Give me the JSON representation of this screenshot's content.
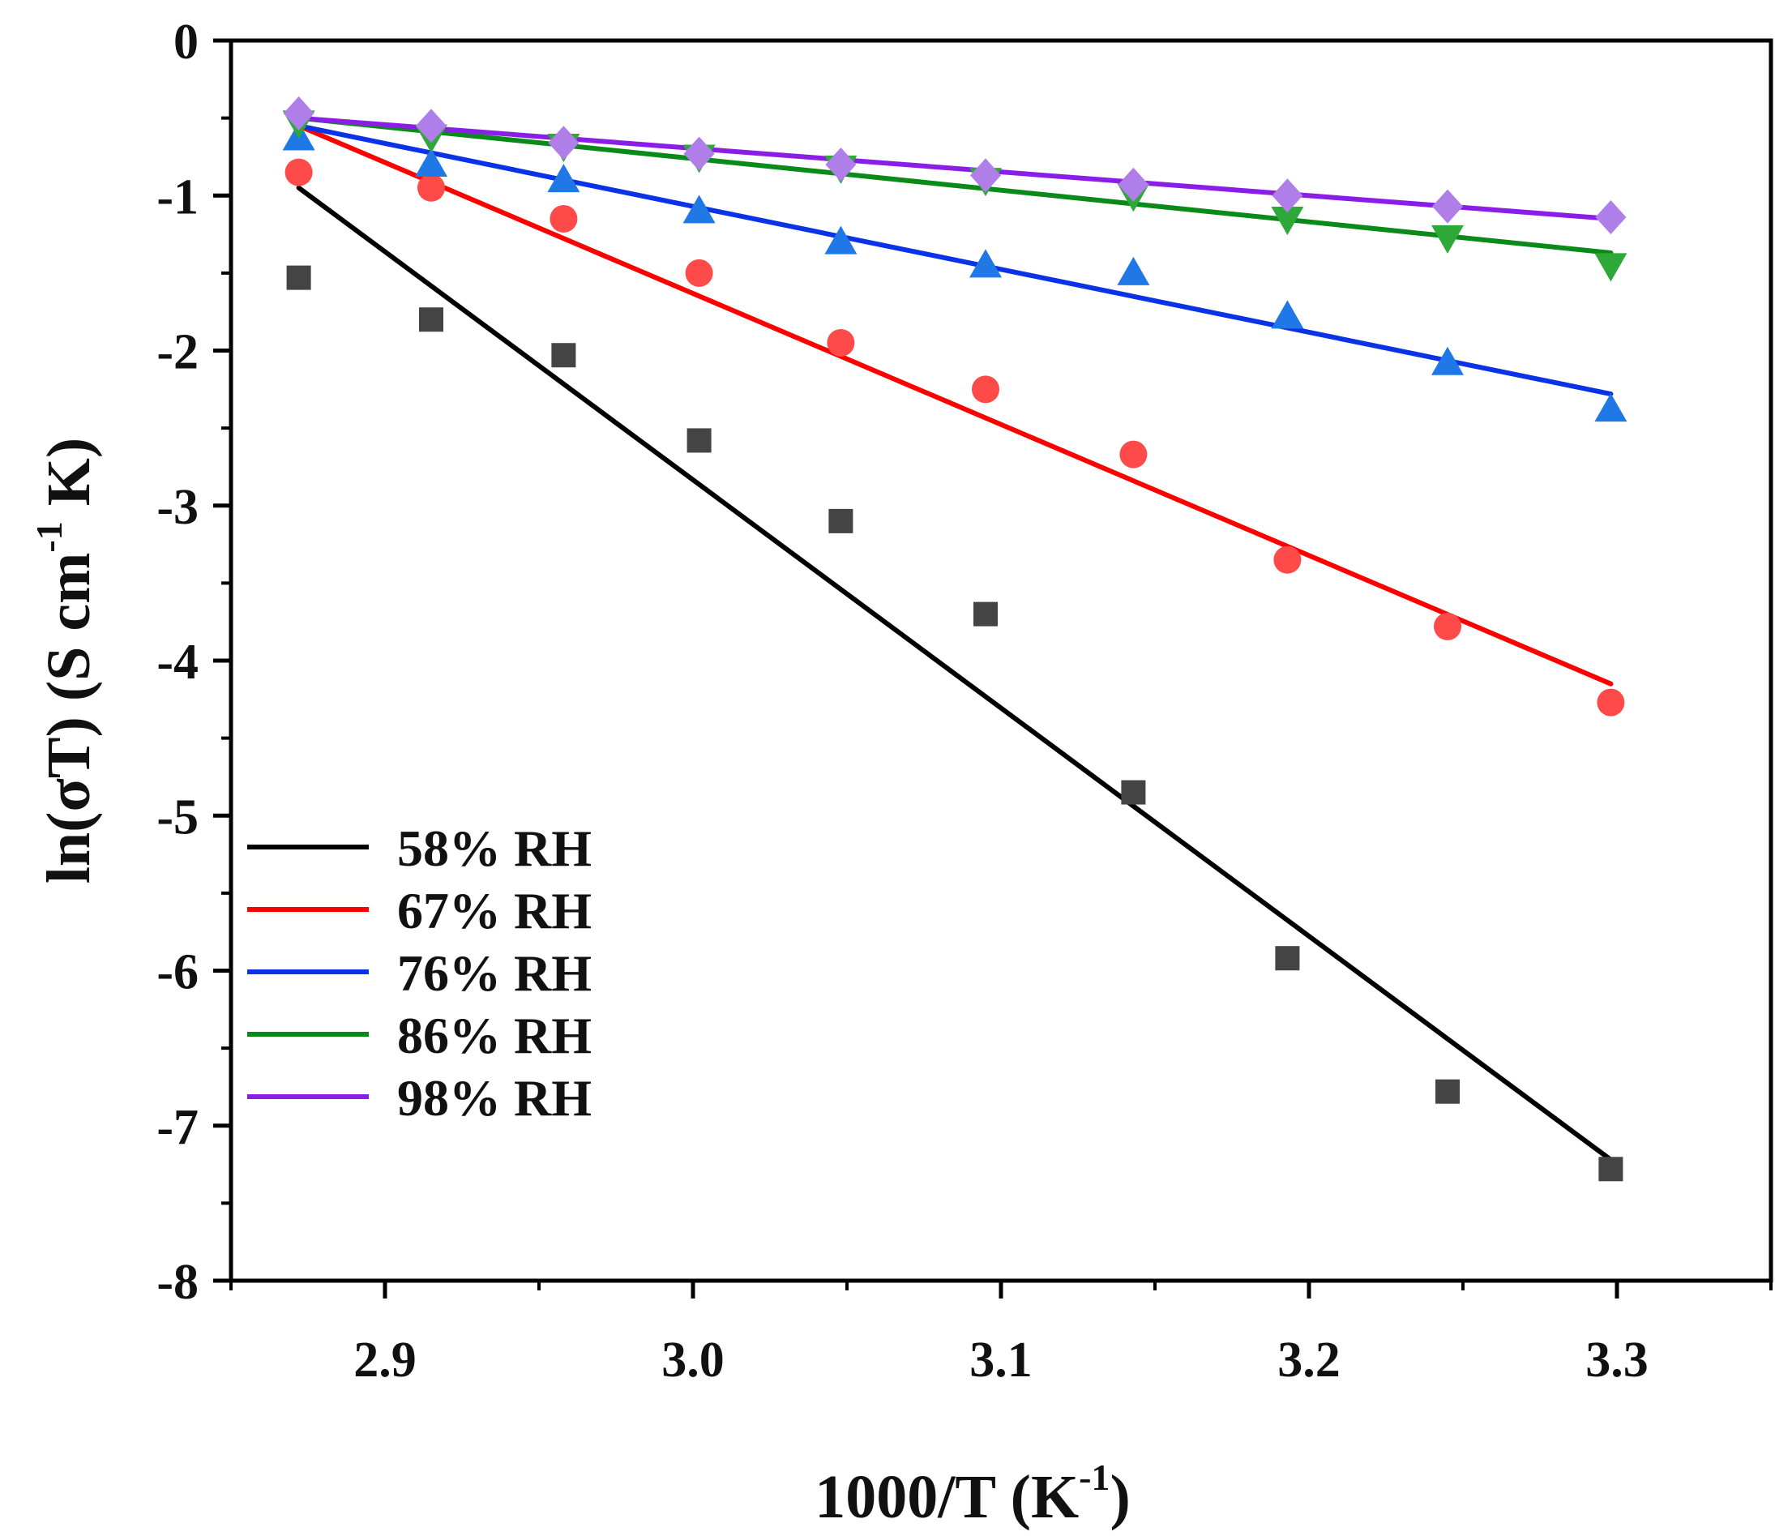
{
  "chart_data": {
    "type": "scatter",
    "title": "",
    "xlabel": {
      "main": "1000/T (K",
      "sup": "-1",
      "tail": ")"
    },
    "ylabel": {
      "main": "ln(σT) (S cm",
      "sup": "-1",
      "tail": " K)"
    },
    "xlim": [
      2.85,
      3.35
    ],
    "ylim": [
      -8,
      0
    ],
    "xticks": [
      2.9,
      3.0,
      3.1,
      3.2,
      3.3
    ],
    "xtick_labels": [
      "2.9",
      "3.0",
      "3.1",
      "3.2",
      "3.3"
    ],
    "yticks": [
      0,
      -1,
      -2,
      -3,
      -4,
      -5,
      -6,
      -7,
      -8
    ],
    "ytick_labels": [
      "0",
      "-1",
      "-2",
      "-3",
      "-4",
      "-5",
      "-6",
      "-7",
      "-8"
    ],
    "grid": false,
    "legend_position": "bottom-left",
    "x": [
      2.872,
      2.915,
      2.958,
      3.002,
      3.048,
      3.095,
      3.143,
      3.193,
      3.245,
      3.298
    ],
    "series": [
      {
        "name": "58% RH",
        "color": "#000000",
        "marker": "square",
        "marker_color": "#444444",
        "values": [
          -1.53,
          -1.8,
          -2.03,
          -2.58,
          -3.1,
          -3.7,
          -4.85,
          -5.92,
          -6.78,
          -7.28
        ],
        "fit": [
          [
            2.872,
            -0.95
          ],
          [
            3.298,
            -7.22
          ]
        ]
      },
      {
        "name": "67% RH",
        "color": "#ff0000",
        "marker": "circle",
        "marker_color": "#ff4a4a",
        "values": [
          -0.85,
          -0.95,
          -1.15,
          -1.5,
          -1.95,
          -2.25,
          -2.67,
          -3.35,
          -3.78,
          -4.27
        ],
        "fit": [
          [
            2.872,
            -0.55
          ],
          [
            3.298,
            -4.15
          ]
        ]
      },
      {
        "name": "76% RH",
        "color": "#0a32e6",
        "marker": "triangle-up",
        "marker_color": "#1f78e6",
        "values": [
          -0.63,
          -0.8,
          -0.9,
          -1.1,
          -1.3,
          -1.45,
          -1.5,
          -1.78,
          -2.08,
          -2.38
        ],
        "fit": [
          [
            2.872,
            -0.55
          ],
          [
            3.298,
            -2.28
          ]
        ]
      },
      {
        "name": "86% RH",
        "color": "#0a8a18",
        "marker": "triangle-down",
        "marker_color": "#2ea838",
        "values": [
          -0.53,
          -0.62,
          -0.68,
          -0.75,
          -0.82,
          -0.9,
          -1.0,
          -1.15,
          -1.27,
          -1.45
        ],
        "fit": [
          [
            2.872,
            -0.5
          ],
          [
            3.298,
            -1.37
          ]
        ]
      },
      {
        "name": "98% RH",
        "color": "#8a1ee6",
        "marker": "diamond",
        "marker_color": "#b07ee8",
        "values": [
          -0.47,
          -0.55,
          -0.66,
          -0.73,
          -0.8,
          -0.87,
          -0.93,
          -1.0,
          -1.07,
          -1.14
        ],
        "fit": [
          [
            2.872,
            -0.5
          ],
          [
            3.298,
            -1.15
          ]
        ]
      }
    ]
  }
}
